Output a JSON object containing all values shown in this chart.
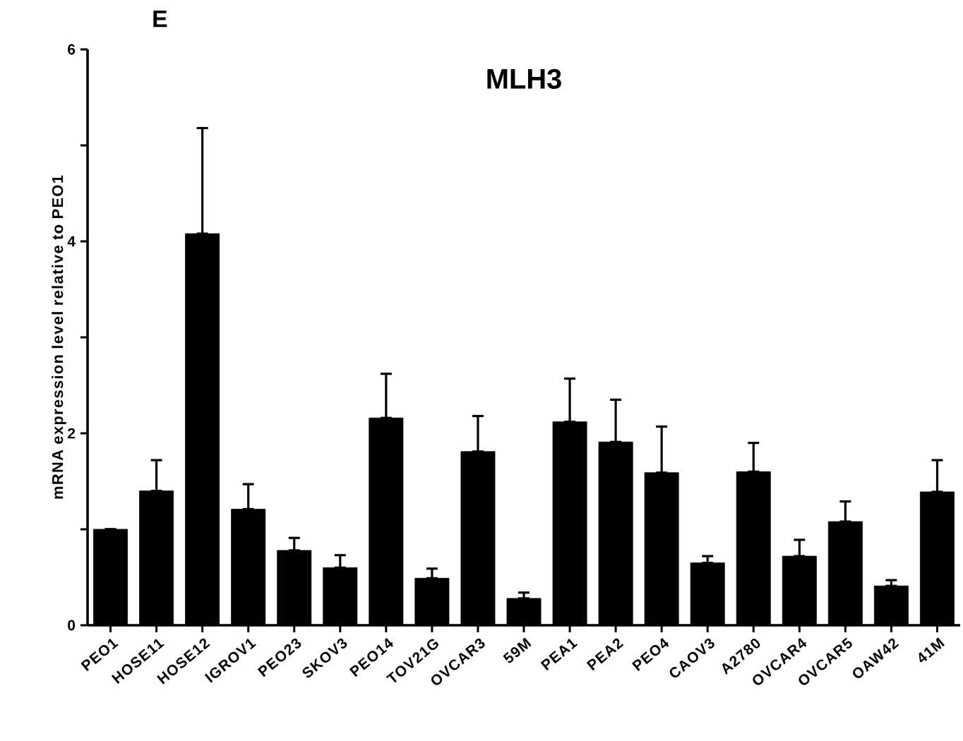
{
  "chart_data": {
    "type": "bar",
    "title": "MLH3",
    "ylabel": "mRNA expression level relative to PEO1",
    "annotations": [
      "E"
    ],
    "categories": [
      "PEO1",
      "HOSE11",
      "HOSE12",
      "IGROV1",
      "PEO23",
      "SKOV3",
      "PEO14",
      "TOV21G",
      "OVCAR3",
      "59M",
      "PEA1",
      "PEA2",
      "PEO4",
      "CAOV3",
      "A2780",
      "OVCAR4",
      "OVCAR5",
      "OAW42",
      "41M"
    ],
    "values": [
      1.0,
      1.4,
      4.08,
      1.21,
      0.78,
      0.6,
      2.16,
      0.49,
      1.81,
      0.28,
      2.12,
      1.91,
      1.59,
      0.65,
      1.6,
      0.72,
      1.08,
      0.41,
      1.39
    ],
    "errors": [
      null,
      [
        1.4,
        1.72
      ],
      [
        4.08,
        5.18
      ],
      [
        1.21,
        1.47
      ],
      [
        0.78,
        0.91
      ],
      [
        0.6,
        0.73
      ],
      [
        2.16,
        2.62
      ],
      [
        0.49,
        0.59
      ],
      [
        1.81,
        2.18
      ],
      [
        0.28,
        0.34
      ],
      [
        2.12,
        2.57
      ],
      [
        1.91,
        2.35
      ],
      [
        1.59,
        2.07
      ],
      [
        0.65,
        0.72
      ],
      [
        1.6,
        1.9
      ],
      [
        0.72,
        0.89
      ],
      [
        1.08,
        1.29
      ],
      [
        0.41,
        0.47
      ],
      [
        1.39,
        1.72
      ]
    ],
    "color": "#000000",
    "ylim": [
      0,
      6
    ],
    "yticks": [
      0,
      {
        "value": 1,
        "label": null
      },
      2,
      {
        "value": 3,
        "label": null
      },
      4,
      {
        "value": 5,
        "label": null
      },
      6
    ],
    "grid": false
  }
}
